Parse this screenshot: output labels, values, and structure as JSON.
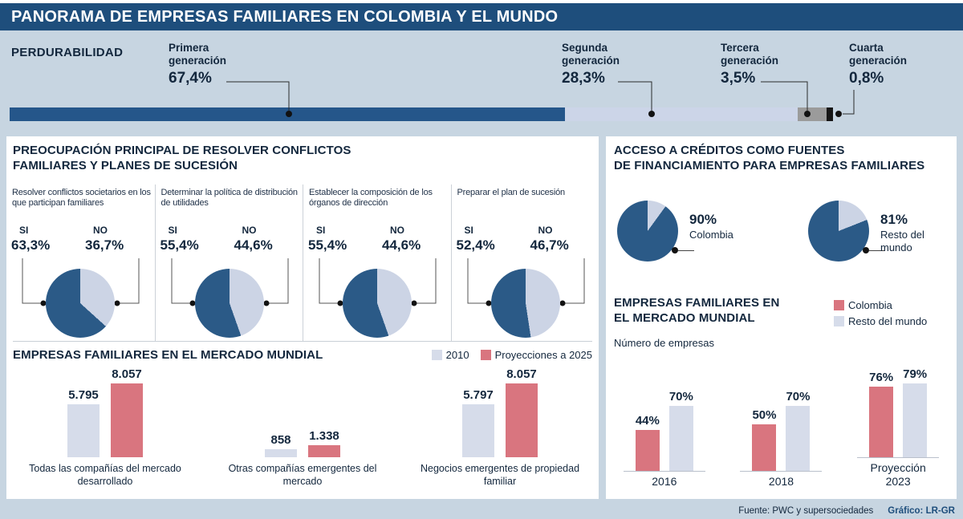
{
  "header": {
    "title": "PANORAMA DE EMPRESAS FAMILIARES EN COLOMBIA Y EL MUNDO"
  },
  "colors": {
    "header_bg": "#1e4e7c",
    "page_bg": "#c7d5e1",
    "pie_dark": "#2b5a87",
    "pie_light": "#ccd4e5",
    "red": "#d9757f",
    "light_bar": "#d6dcea"
  },
  "perdurabilidad": {
    "label": "PERDURABILIDAD",
    "generations": [
      {
        "name": "Primera generación",
        "value": "67,4%",
        "pct": 67.4,
        "color": "#25568a"
      },
      {
        "name": "Segunda generación",
        "value": "28,3%",
        "pct": 28.3,
        "color": "#ccd5e8"
      },
      {
        "name": "Tercera generación",
        "value": "3,5%",
        "pct": 3.5,
        "color": "#9b9b9b"
      },
      {
        "name": "Cuarta generación",
        "value": "0,8%",
        "pct": 0.8,
        "color": "#161616"
      }
    ]
  },
  "conflictos": {
    "title_line1": "PREOCUPACIÓN PRINCIPAL DE RESOLVER CONFLICTOS",
    "title_line2": "FAMILIARES Y PLANES DE SUCESIÓN",
    "si_label": "SI",
    "no_label": "NO",
    "items": [
      {
        "desc": "Resolver conflictos societarios en los que participan familiares",
        "si": "63,3%",
        "no": "36,7%",
        "si_pct": 63.3
      },
      {
        "desc": "Determinar la política de distribución de utilidades",
        "si": "55,4%",
        "no": "44,6%",
        "si_pct": 55.4
      },
      {
        "desc": "Establecer la composición de los órganos de dirección",
        "si": "55,4%",
        "no": "44,6%",
        "si_pct": 55.4
      },
      {
        "desc": "Preparar el plan de sucesión",
        "si": "52,4%",
        "no": "46,7%",
        "si_pct": 52.4
      }
    ]
  },
  "creditos": {
    "title_line1": "ACCESO A CRÉDITOS COMO FUENTES",
    "title_line2": "DE FINANCIAMIENTO PARA EMPRESAS FAMILIARES",
    "items": [
      {
        "value": "90%",
        "label": "Colombia",
        "pct": 90
      },
      {
        "value": "81%",
        "label": "Resto del mundo",
        "pct": 81
      }
    ]
  },
  "mercado_izq": {
    "title": "EMPRESAS FAMILIARES EN EL MERCADO MUNDIAL",
    "legend": [
      {
        "label": "2010"
      },
      {
        "label": "Proyecciones a 2025"
      }
    ],
    "max": 8057,
    "groups": [
      {
        "caption": "Todas las compañías del mercado desarrollado",
        "bars": [
          {
            "label": "5.795",
            "value": 5795
          },
          {
            "label": "8.057",
            "value": 8057
          }
        ]
      },
      {
        "caption": "Otras compañías emergentes del mercado",
        "bars": [
          {
            "label": "858",
            "value": 858
          },
          {
            "label": "1.338",
            "value": 1338
          }
        ]
      },
      {
        "caption": "Negocios emergentes de propiedad familiar",
        "bars": [
          {
            "label": "5.797",
            "value": 5797
          },
          {
            "label": "8.057",
            "value": 8057
          }
        ]
      }
    ]
  },
  "mercado_der": {
    "title_line1": "EMPRESAS FAMILIARES EN",
    "title_line2": "EL MERCADO MUNDIAL",
    "subtitle": "Número de empresas",
    "legend": [
      {
        "label": "Colombia"
      },
      {
        "label": "Resto del mundo"
      }
    ],
    "max": 100,
    "groups": [
      {
        "caption": "2016",
        "bars": [
          {
            "label": "44%",
            "value": 44
          },
          {
            "label": "70%",
            "value": 70
          }
        ]
      },
      {
        "caption": "2018",
        "bars": [
          {
            "label": "50%",
            "value": 50
          },
          {
            "label": "70%",
            "value": 70
          }
        ]
      },
      {
        "caption": "Proyección 2023",
        "bars": [
          {
            "label": "76%",
            "value": 76
          },
          {
            "label": "79%",
            "value": 79
          }
        ]
      }
    ]
  },
  "footer": {
    "source": "Fuente: PWC y supersociedades",
    "credit": "Gráfico: LR-GR"
  },
  "chart_data": [
    {
      "id": "perdurabilidad",
      "type": "bar",
      "variant": "stacked-horizontal",
      "title": "PERDURABILIDAD",
      "categories": [
        "Primera generación",
        "Segunda generación",
        "Tercera generación",
        "Cuarta generación"
      ],
      "values": [
        67.4,
        28.3,
        3.5,
        0.8
      ],
      "unit": "%"
    },
    {
      "id": "conflictos-sucesion",
      "type": "pie",
      "title": "PREOCUPACIÓN PRINCIPAL DE RESOLVER CONFLICTOS FAMILIARES Y PLANES DE SUCESIÓN",
      "charts": [
        {
          "label": "Resolver conflictos societarios en los que participan familiares",
          "categories": [
            "SI",
            "NO"
          ],
          "values": [
            63.3,
            36.7
          ]
        },
        {
          "label": "Determinar la política de distribución de utilidades",
          "categories": [
            "SI",
            "NO"
          ],
          "values": [
            55.4,
            44.6
          ]
        },
        {
          "label": "Establecer la composición de los órganos de dirección",
          "categories": [
            "SI",
            "NO"
          ],
          "values": [
            55.4,
            44.6
          ]
        },
        {
          "label": "Preparar el plan de sucesión",
          "categories": [
            "SI",
            "NO"
          ],
          "values": [
            52.4,
            46.7
          ]
        }
      ]
    },
    {
      "id": "acceso-creditos",
      "type": "pie",
      "title": "ACCESO A CRÉDITOS COMO FUENTES DE FINANCIAMIENTO PARA EMPRESAS FAMILIARES",
      "charts": [
        {
          "label": "Colombia",
          "value": 90,
          "unit": "%"
        },
        {
          "label": "Resto del mundo",
          "value": 81,
          "unit": "%"
        }
      ]
    },
    {
      "id": "mercado-mundial-companias",
      "type": "bar",
      "title": "EMPRESAS FAMILIARES EN EL MERCADO MUNDIAL",
      "categories": [
        "Todas las compañías del mercado desarrollado",
        "Otras compañías emergentes del mercado",
        "Negocios emergentes de propiedad familiar"
      ],
      "series": [
        {
          "name": "2010",
          "values": [
            5795,
            858,
            5797
          ]
        },
        {
          "name": "Proyecciones a 2025",
          "values": [
            8057,
            1338,
            8057
          ]
        }
      ]
    },
    {
      "id": "mercado-mundial-porcentajes",
      "type": "bar",
      "title": "EMPRESAS FAMILIARES EN EL MERCADO MUNDIAL",
      "subtitle": "Número de empresas",
      "categories": [
        "2016",
        "2018",
        "Proyección 2023"
      ],
      "series": [
        {
          "name": "Colombia",
          "values": [
            44,
            50,
            76
          ]
        },
        {
          "name": "Resto del mundo",
          "values": [
            70,
            70,
            79
          ]
        }
      ],
      "unit": "%"
    }
  ]
}
